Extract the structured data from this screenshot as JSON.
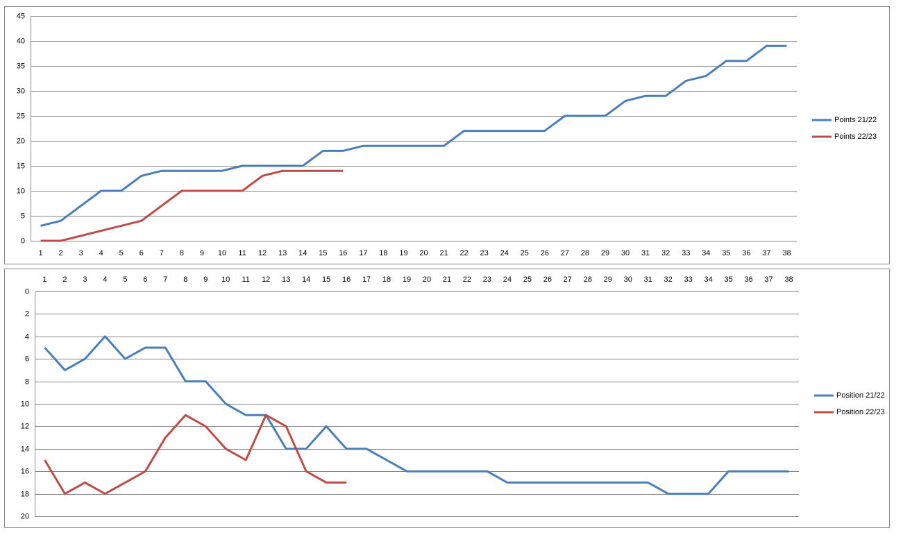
{
  "chart_data": [
    {
      "type": "line",
      "categories": [
        1,
        2,
        3,
        4,
        5,
        6,
        7,
        8,
        9,
        10,
        11,
        12,
        13,
        14,
        15,
        16,
        17,
        18,
        19,
        20,
        21,
        22,
        23,
        24,
        25,
        26,
        27,
        28,
        29,
        30,
        31,
        32,
        33,
        34,
        35,
        36,
        37,
        38
      ],
      "series": [
        {
          "name": "Points 21/22",
          "color": "#4a7ebb",
          "values": [
            3,
            4,
            7,
            10,
            10,
            13,
            14,
            14,
            14,
            14,
            15,
            15,
            15,
            15,
            18,
            18,
            19,
            19,
            19,
            19,
            19,
            22,
            22,
            22,
            22,
            22,
            25,
            25,
            25,
            28,
            29,
            29,
            32,
            33,
            36,
            36,
            39,
            39
          ]
        },
        {
          "name": "Points 22/23",
          "color": "#be4b48",
          "values": [
            0,
            0,
            1,
            2,
            3,
            4,
            7,
            10,
            10,
            10,
            10,
            13,
            14,
            14,
            14,
            14,
            null,
            null,
            null,
            null,
            null,
            null,
            null,
            null,
            null,
            null,
            null,
            null,
            null,
            null,
            null,
            null,
            null,
            null,
            null,
            null,
            null,
            null
          ]
        }
      ],
      "ylim": [
        0,
        45
      ],
      "yticks": [
        0,
        5,
        10,
        15,
        20,
        25,
        30,
        35,
        40,
        45
      ],
      "grid": true,
      "legend": "right",
      "y_reversed": false,
      "x_axis_position": "bottom"
    },
    {
      "type": "line",
      "categories": [
        1,
        2,
        3,
        4,
        5,
        6,
        7,
        8,
        9,
        10,
        11,
        12,
        13,
        14,
        15,
        16,
        17,
        18,
        19,
        20,
        21,
        22,
        23,
        24,
        25,
        26,
        27,
        28,
        29,
        30,
        31,
        32,
        33,
        34,
        35,
        36,
        37,
        38
      ],
      "series": [
        {
          "name": "Position 21/22",
          "color": "#4a7ebb",
          "values": [
            5,
            7,
            6,
            4,
            6,
            5,
            5,
            8,
            8,
            10,
            11,
            11,
            14,
            14,
            12,
            14,
            14,
            15,
            16,
            16,
            16,
            16,
            16,
            17,
            17,
            17,
            17,
            17,
            17,
            17,
            17,
            18,
            18,
            18,
            16,
            16,
            16,
            16
          ]
        },
        {
          "name": "Position 22/23",
          "color": "#be4b48",
          "values": [
            15,
            18,
            17,
            18,
            17,
            16,
            13,
            11,
            12,
            14,
            15,
            11,
            12,
            16,
            17,
            17,
            null,
            null,
            null,
            null,
            null,
            null,
            null,
            null,
            null,
            null,
            null,
            null,
            null,
            null,
            null,
            null,
            null,
            null,
            null,
            null,
            null,
            null
          ]
        }
      ],
      "ylim": [
        0,
        20
      ],
      "yticks": [
        0,
        2,
        4,
        6,
        8,
        10,
        12,
        14,
        16,
        18,
        20
      ],
      "grid": true,
      "legend": "right",
      "y_reversed": true,
      "x_axis_position": "top"
    }
  ]
}
